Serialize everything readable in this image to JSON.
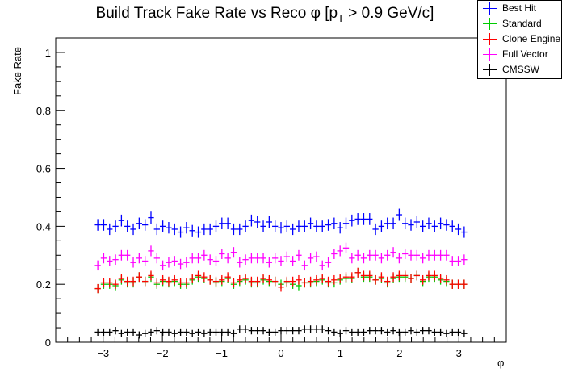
{
  "chart_data": {
    "type": "scatter",
    "title": "Build Track Fake Rate vs Reco φ [p_T > 0.9 GeV/c]",
    "title_parts": {
      "pre": "Build Track Fake Rate vs Reco φ [p",
      "sub": "T",
      "post": " > 0.9 GeV/c]"
    },
    "xlabel": "φ",
    "ylabel": "Fake Rate",
    "xlim": [
      -3.8,
      3.8
    ],
    "ylim": [
      0,
      1.05
    ],
    "xticks": [
      "−3",
      "−2",
      "−1",
      "0",
      "1",
      "2",
      "3"
    ],
    "xtick_values": [
      -3,
      -2,
      -1,
      0,
      1,
      2,
      3
    ],
    "yticks": [
      "0",
      "0.2",
      "0.4",
      "0.6",
      "0.8",
      "1"
    ],
    "ytick_values": [
      0,
      0.2,
      0.4,
      0.6,
      0.8,
      1
    ],
    "legend_position": "top-right",
    "x_range_points": [
      -3.14,
      3.14
    ],
    "series": [
      {
        "name": "Best Hit",
        "color": "#0000ff",
        "values": [
          0.405,
          0.405,
          0.39,
          0.4,
          0.42,
          0.4,
          0.39,
          0.41,
          0.405,
          0.43,
          0.39,
          0.4,
          0.395,
          0.39,
          0.38,
          0.395,
          0.385,
          0.38,
          0.39,
          0.39,
          0.4,
          0.41,
          0.41,
          0.39,
          0.39,
          0.4,
          0.42,
          0.415,
          0.4,
          0.415,
          0.4,
          0.395,
          0.4,
          0.39,
          0.4,
          0.4,
          0.41,
          0.4,
          0.4,
          0.405,
          0.41,
          0.395,
          0.41,
          0.42,
          0.425,
          0.425,
          0.425,
          0.39,
          0.4,
          0.41,
          0.41,
          0.44,
          0.41,
          0.405,
          0.415,
          0.4,
          0.41,
          0.4,
          0.41,
          0.405,
          0.4,
          0.39,
          0.38
        ]
      },
      {
        "name": "Standard",
        "color": "#00cc00",
        "values": [
          0.185,
          0.2,
          0.2,
          0.195,
          0.215,
          0.205,
          0.205,
          0.225,
          0.21,
          0.225,
          0.2,
          0.21,
          0.205,
          0.21,
          0.2,
          0.2,
          0.215,
          0.225,
          0.22,
          0.215,
          0.205,
          0.21,
          0.22,
          0.2,
          0.21,
          0.215,
          0.205,
          0.205,
          0.215,
          0.21,
          0.21,
          0.2,
          0.205,
          0.2,
          0.195,
          0.205,
          0.205,
          0.21,
          0.215,
          0.205,
          0.205,
          0.215,
          0.22,
          0.22,
          0.24,
          0.225,
          0.225,
          0.215,
          0.22,
          0.205,
          0.22,
          0.225,
          0.225,
          0.22,
          0.23,
          0.21,
          0.225,
          0.225,
          0.215,
          0.21,
          0.2,
          0.2,
          0.2
        ]
      },
      {
        "name": "Clone Engine",
        "color": "#ff0000",
        "values": [
          0.185,
          0.205,
          0.205,
          0.2,
          0.22,
          0.21,
          0.21,
          0.225,
          0.21,
          0.23,
          0.205,
          0.215,
          0.21,
          0.215,
          0.205,
          0.205,
          0.22,
          0.23,
          0.225,
          0.215,
          0.21,
          0.215,
          0.225,
          0.205,
          0.215,
          0.22,
          0.21,
          0.21,
          0.22,
          0.215,
          0.21,
          0.19,
          0.21,
          0.21,
          0.215,
          0.205,
          0.21,
          0.215,
          0.22,
          0.21,
          0.215,
          0.22,
          0.225,
          0.225,
          0.24,
          0.23,
          0.23,
          0.215,
          0.225,
          0.21,
          0.225,
          0.23,
          0.23,
          0.22,
          0.23,
          0.215,
          0.23,
          0.23,
          0.22,
          0.215,
          0.2,
          0.2,
          0.2
        ]
      },
      {
        "name": "Full Vector",
        "color": "#ff00ff",
        "values": [
          0.265,
          0.29,
          0.28,
          0.285,
          0.3,
          0.3,
          0.275,
          0.29,
          0.28,
          0.315,
          0.29,
          0.265,
          0.275,
          0.28,
          0.27,
          0.275,
          0.29,
          0.29,
          0.3,
          0.285,
          0.28,
          0.305,
          0.29,
          0.31,
          0.275,
          0.285,
          0.29,
          0.29,
          0.29,
          0.275,
          0.29,
          0.28,
          0.295,
          0.28,
          0.3,
          0.265,
          0.29,
          0.295,
          0.265,
          0.275,
          0.305,
          0.315,
          0.325,
          0.29,
          0.3,
          0.29,
          0.3,
          0.3,
          0.29,
          0.3,
          0.31,
          0.29,
          0.305,
          0.3,
          0.3,
          0.29,
          0.3,
          0.3,
          0.3,
          0.3,
          0.28,
          0.28,
          0.285
        ]
      },
      {
        "name": "CMSSW",
        "color": "#000000",
        "values": [
          0.035,
          0.035,
          0.035,
          0.04,
          0.03,
          0.035,
          0.035,
          0.025,
          0.03,
          0.035,
          0.04,
          0.035,
          0.035,
          0.03,
          0.035,
          0.035,
          0.03,
          0.035,
          0.03,
          0.035,
          0.035,
          0.035,
          0.035,
          0.03,
          0.045,
          0.045,
          0.04,
          0.04,
          0.04,
          0.035,
          0.035,
          0.04,
          0.04,
          0.04,
          0.04,
          0.045,
          0.045,
          0.045,
          0.045,
          0.04,
          0.035,
          0.03,
          0.04,
          0.035,
          0.035,
          0.035,
          0.04,
          0.04,
          0.04,
          0.035,
          0.04,
          0.035,
          0.035,
          0.04,
          0.035,
          0.04,
          0.04,
          0.035,
          0.035,
          0.03,
          0.035,
          0.035,
          0.03
        ]
      }
    ]
  }
}
